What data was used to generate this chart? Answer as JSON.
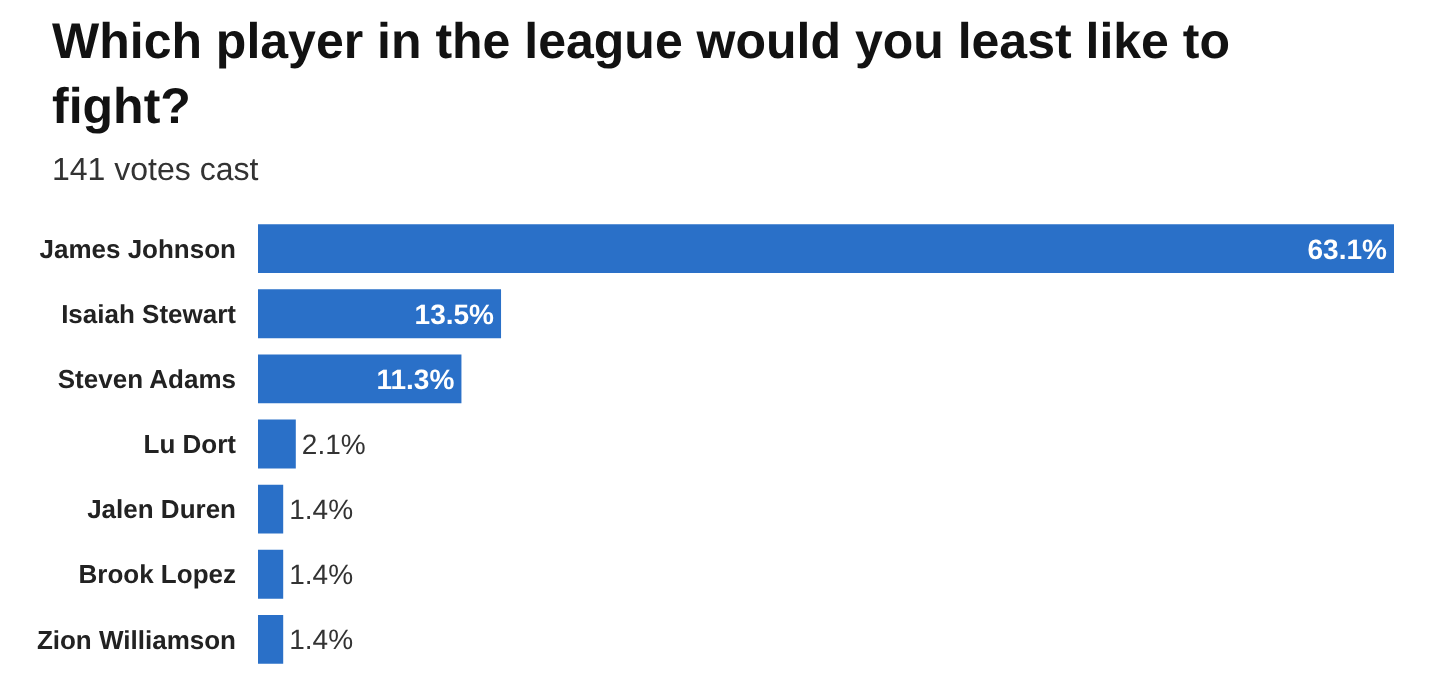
{
  "chart_data": {
    "type": "bar",
    "orientation": "horizontal",
    "title": "Which player in the league would you least like to fight?",
    "subtitle": "141 votes cast",
    "categories": [
      "James Johnson",
      "Isaiah Stewart",
      "Steven Adams",
      "Lu Dort",
      "Jalen Duren",
      "Brook Lopez",
      "Zion Williamson"
    ],
    "values": [
      63.1,
      13.5,
      11.3,
      2.1,
      1.4,
      1.4,
      1.4
    ],
    "value_labels": [
      "63.1%",
      "13.5%",
      "11.3%",
      "2.1%",
      "1.4%",
      "1.4%",
      "1.4%"
    ],
    "color": "#2a70c8",
    "tick_labels": "y",
    "legend": false
  }
}
